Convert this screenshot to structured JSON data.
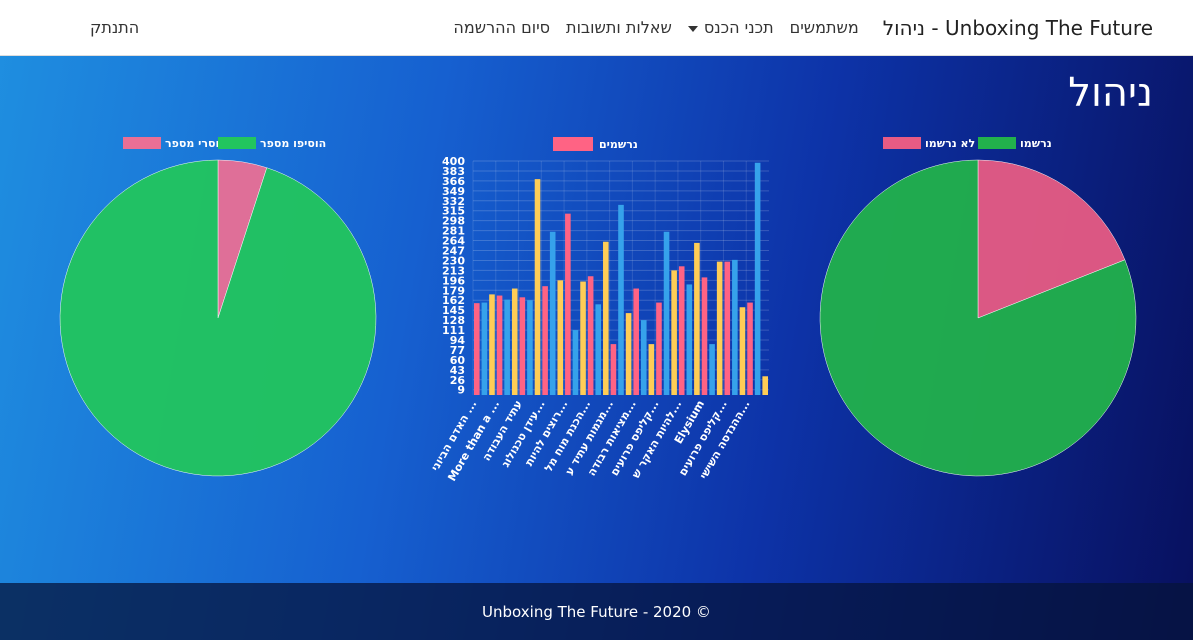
{
  "nav": {
    "brand": "Unboxing The Future - ניהול",
    "links": [
      "משתמשים",
      "תכני הכנס",
      "שאלות ותשובות",
      "סיום ההרשמה"
    ],
    "logout": "התנתק"
  },
  "heading": "ניהול",
  "chart_data": [
    {
      "type": "pie",
      "categories": [
        "לא נרשמו",
        "נרשמו"
      ],
      "values": [
        19,
        81
      ],
      "colors": [
        "#e75b84",
        "#22b14c"
      ]
    },
    {
      "type": "bar",
      "series": [
        {
          "name": "נרשמים",
          "colors": [
            "#ff6384",
            "#36a2eb",
            "#ffcd56"
          ],
          "values": [
            157,
            158,
            172,
            170,
            163,
            182,
            167,
            162,
            369,
            186,
            279,
            196,
            310,
            111,
            194,
            203,
            155,
            262,
            87,
            325,
            140,
            182,
            128,
            87,
            158,
            279,
            213,
            220,
            189,
            260,
            201,
            87,
            228,
            228,
            231,
            150,
            158,
            397,
            32
          ]
        }
      ],
      "categories": [
        "האדם הביוני ...",
        null,
        null,
        "More than a ...",
        null,
        null,
        "עתיד העבודה",
        null,
        null,
        "עידן טכנולוג...",
        null,
        null,
        "רוצים להיות...",
        null,
        null,
        "הכנת מוח מל...",
        null,
        null,
        "מגמות עתיד ע...",
        null,
        null,
        "מציאות רבודה...",
        null,
        null,
        "קליפס פרועים...",
        null,
        null,
        "להיות האקר ש...",
        null,
        null,
        "Elysium",
        null,
        null,
        "קליפס פרועים...",
        null,
        null,
        "ההנדסה השישי...",
        null,
        null
      ],
      "ylim": [
        0,
        400
      ],
      "yticks": [
        9,
        26,
        43,
        60,
        77,
        94,
        111,
        128,
        145,
        162,
        179,
        196,
        213,
        230,
        247,
        264,
        281,
        298,
        315,
        332,
        349,
        366,
        383,
        400
      ],
      "grid": true
    },
    {
      "type": "pie",
      "categories": [
        "חסרי מספר",
        "הוסיפו מספר"
      ],
      "values": [
        5,
        95
      ],
      "colors": [
        "#ea6f95",
        "#22c55e"
      ]
    }
  ],
  "footer": "Unboxing The Future - 2020 ©"
}
